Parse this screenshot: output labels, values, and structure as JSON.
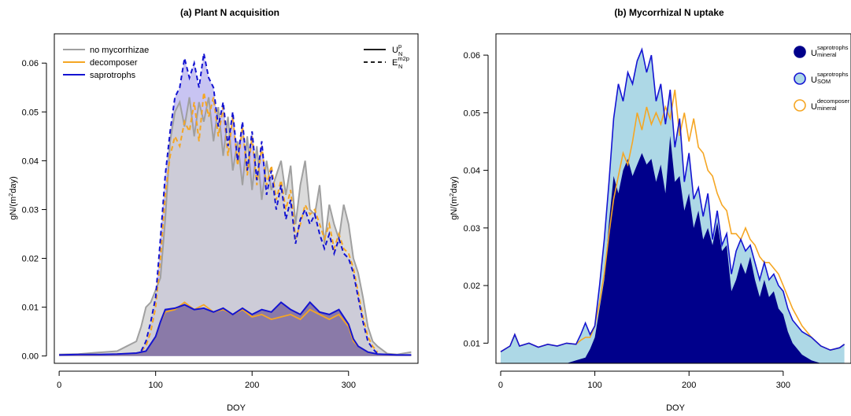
{
  "chart_data": [
    {
      "type": "area",
      "title": "(a) Plant N acquisition",
      "xlabel": "DOY",
      "ylabel": "gN/(m²day)",
      "xlim": [
        -5,
        372
      ],
      "ylim": [
        -0.0015,
        0.066
      ],
      "xticks": [
        0,
        100,
        200,
        300
      ],
      "yticks": [
        0.0,
        0.01,
        0.02,
        0.03,
        0.04,
        0.05,
        0.06
      ],
      "ytick_labels": [
        "0.00",
        "0.01",
        "0.02",
        "0.03",
        "0.04",
        "0.05",
        "0.06"
      ],
      "legend_position": "top-left",
      "legend": [
        {
          "label": "no mycorrhizae",
          "color": "#a0a0a0"
        },
        {
          "label": "decomposer",
          "color": "#f5a623"
        },
        {
          "label": "saprotrophs",
          "color": "#1414d2"
        }
      ],
      "legend2": [
        {
          "base": "U",
          "sup": "p",
          "sub": "N",
          "style": "solid"
        },
        {
          "base": "E",
          "sup": "m2p",
          "sub": "N",
          "style": "dashed"
        }
      ],
      "series": [
        {
          "name": "no mycorrhizae",
          "color": "#a0a0a0",
          "style": "solid",
          "fill": "#cfcfcf",
          "x": [
            0,
            20,
            40,
            60,
            70,
            80,
            85,
            90,
            95,
            100,
            105,
            110,
            115,
            120,
            125,
            130,
            135,
            140,
            145,
            150,
            155,
            160,
            165,
            170,
            175,
            180,
            185,
            190,
            195,
            200,
            205,
            210,
            215,
            220,
            225,
            230,
            235,
            240,
            245,
            250,
            255,
            260,
            265,
            270,
            275,
            280,
            285,
            290,
            295,
            300,
            305,
            310,
            315,
            320,
            325,
            330,
            340,
            350,
            365
          ],
          "y": [
            0.0003,
            0.0004,
            0.0007,
            0.001,
            0.002,
            0.003,
            0.006,
            0.01,
            0.011,
            0.0135,
            0.016,
            0.028,
            0.044,
            0.05,
            0.052,
            0.047,
            0.053,
            0.045,
            0.052,
            0.048,
            0.053,
            0.044,
            0.051,
            0.041,
            0.049,
            0.038,
            0.044,
            0.035,
            0.045,
            0.034,
            0.043,
            0.032,
            0.04,
            0.034,
            0.037,
            0.04,
            0.033,
            0.039,
            0.027,
            0.035,
            0.04,
            0.03,
            0.029,
            0.035,
            0.023,
            0.031,
            0.027,
            0.024,
            0.031,
            0.027,
            0.02,
            0.017,
            0.012,
            0.006,
            0.003,
            0.002,
            0.0005,
            0.0003,
            0.0008
          ]
        },
        {
          "name": "decomposer",
          "color": "#f5a623",
          "style": "solid",
          "x": [
            0,
            20,
            40,
            60,
            80,
            90,
            100,
            105,
            110,
            120,
            130,
            140,
            150,
            160,
            170,
            180,
            190,
            200,
            210,
            220,
            230,
            240,
            250,
            260,
            270,
            280,
            290,
            300,
            305,
            310,
            320,
            330,
            340,
            350,
            365
          ],
          "y": [
            0.0002,
            0.0003,
            0.0003,
            0.0004,
            0.0006,
            0.001,
            0.004,
            0.007,
            0.009,
            0.0095,
            0.011,
            0.0095,
            0.0105,
            0.009,
            0.0095,
            0.0085,
            0.0095,
            0.008,
            0.0085,
            0.0075,
            0.008,
            0.0085,
            0.0075,
            0.0095,
            0.0085,
            0.0075,
            0.0085,
            0.006,
            0.003,
            0.002,
            0.0008,
            0.0004,
            0.0003,
            0.0002,
            0.0002
          ]
        },
        {
          "name": "saprotrophs",
          "color": "#1414d2",
          "style": "solid",
          "fill": "#8a7aa8",
          "x": [
            0,
            20,
            40,
            60,
            80,
            90,
            100,
            105,
            110,
            120,
            130,
            140,
            150,
            160,
            170,
            180,
            190,
            200,
            210,
            220,
            230,
            240,
            250,
            260,
            270,
            280,
            290,
            300,
            305,
            310,
            320,
            330,
            340,
            350,
            365
          ],
          "y": [
            0.0002,
            0.0003,
            0.0003,
            0.0004,
            0.0006,
            0.001,
            0.004,
            0.007,
            0.0095,
            0.0098,
            0.0105,
            0.0095,
            0.0098,
            0.009,
            0.0098,
            0.0085,
            0.0098,
            0.0085,
            0.0095,
            0.009,
            0.011,
            0.0095,
            0.0085,
            0.011,
            0.009,
            0.0085,
            0.0095,
            0.0065,
            0.0035,
            0.002,
            0.0008,
            0.0004,
            0.0003,
            0.0002,
            0.0002
          ]
        },
        {
          "name": "decomposer",
          "color": "#f5a623",
          "style": "dashed",
          "x": [
            85,
            90,
            95,
            100,
            105,
            110,
            115,
            120,
            125,
            130,
            135,
            140,
            145,
            150,
            155,
            160,
            165,
            170,
            175,
            180,
            185,
            190,
            195,
            200,
            205,
            210,
            215,
            220,
            225,
            230,
            235,
            240,
            245,
            250,
            255,
            260,
            265,
            270,
            275,
            280,
            285,
            290,
            295,
            300,
            305,
            310,
            315,
            320,
            325,
            330
          ],
          "y": [
            0.001,
            0.002,
            0.005,
            0.01,
            0.02,
            0.033,
            0.041,
            0.045,
            0.043,
            0.048,
            0.046,
            0.052,
            0.044,
            0.054,
            0.049,
            0.053,
            0.045,
            0.051,
            0.041,
            0.049,
            0.039,
            0.047,
            0.037,
            0.045,
            0.035,
            0.043,
            0.035,
            0.039,
            0.032,
            0.036,
            0.03,
            0.034,
            0.024,
            0.027,
            0.031,
            0.029,
            0.03,
            0.027,
            0.024,
            0.027,
            0.022,
            0.025,
            0.022,
            0.021,
            0.018,
            0.013,
            0.008,
            0.004,
            0.002,
            0.0008
          ]
        },
        {
          "name": "saprotrophs",
          "color": "#1414d2",
          "style": "dashed",
          "fill": "#c8c4f2",
          "x": [
            85,
            90,
            95,
            100,
            105,
            110,
            115,
            120,
            125,
            130,
            135,
            140,
            145,
            150,
            155,
            160,
            165,
            170,
            175,
            180,
            185,
            190,
            195,
            200,
            205,
            210,
            215,
            220,
            225,
            230,
            235,
            240,
            245,
            250,
            255,
            260,
            265,
            270,
            275,
            280,
            285,
            290,
            295,
            300,
            305,
            310,
            315,
            320,
            325,
            330
          ],
          "y": [
            0.001,
            0.003,
            0.007,
            0.012,
            0.024,
            0.037,
            0.046,
            0.053,
            0.055,
            0.061,
            0.057,
            0.06,
            0.055,
            0.062,
            0.057,
            0.055,
            0.047,
            0.052,
            0.043,
            0.05,
            0.04,
            0.048,
            0.038,
            0.046,
            0.036,
            0.044,
            0.033,
            0.038,
            0.03,
            0.035,
            0.028,
            0.032,
            0.023,
            0.028,
            0.03,
            0.027,
            0.029,
            0.025,
            0.022,
            0.025,
            0.021,
            0.024,
            0.021,
            0.02,
            0.017,
            0.012,
            0.007,
            0.003,
            0.0015,
            0.0005
          ]
        }
      ]
    },
    {
      "type": "area",
      "title": "(b) Mycorrhizal N uptake",
      "xlabel": "DOY",
      "ylabel": "gN/(m²day)",
      "xlim": [
        -5,
        372
      ],
      "ylim": [
        0.0065,
        0.0637
      ],
      "xticks": [
        0,
        100,
        200,
        300
      ],
      "yticks": [
        0.01,
        0.02,
        0.03,
        0.04,
        0.05,
        0.06
      ],
      "ytick_labels": [
        "0.01",
        "0.02",
        "0.03",
        "0.04",
        "0.05",
        "0.06"
      ],
      "legend_position": "top-right",
      "legend": [
        {
          "base": "U",
          "sup": "saprotrophs",
          "sub": "mineral",
          "marker": "filled",
          "color": "#00008b"
        },
        {
          "base": "U",
          "sup": "saprotrophs",
          "sub": "SOM",
          "marker": "filled",
          "color": "#add8e6",
          "edge": "#1414d2"
        },
        {
          "base": "U",
          "sup": "decomposer",
          "sub": "mineral",
          "marker": "open",
          "color": "#f5a623"
        }
      ],
      "series": [
        {
          "name": "saprotrophs SOM",
          "color": "#1414d2",
          "fill": "#add8e6",
          "style": "solid",
          "x": [
            0,
            10,
            15,
            20,
            30,
            40,
            50,
            60,
            70,
            80,
            85,
            90,
            95,
            100,
            105,
            110,
            115,
            120,
            125,
            130,
            135,
            140,
            145,
            150,
            155,
            160,
            165,
            170,
            175,
            180,
            185,
            190,
            195,
            200,
            205,
            210,
            215,
            220,
            225,
            230,
            235,
            240,
            245,
            250,
            255,
            260,
            265,
            270,
            275,
            280,
            285,
            290,
            295,
            300,
            305,
            310,
            320,
            330,
            340,
            350,
            360,
            365
          ],
          "y": [
            0.0085,
            0.0095,
            0.0115,
            0.0095,
            0.01,
            0.0093,
            0.0098,
            0.0095,
            0.01,
            0.0098,
            0.0115,
            0.0135,
            0.0115,
            0.013,
            0.02,
            0.028,
            0.038,
            0.049,
            0.055,
            0.052,
            0.057,
            0.055,
            0.059,
            0.061,
            0.057,
            0.06,
            0.052,
            0.055,
            0.048,
            0.054,
            0.044,
            0.049,
            0.038,
            0.043,
            0.035,
            0.037,
            0.032,
            0.036,
            0.028,
            0.033,
            0.027,
            0.029,
            0.022,
            0.026,
            0.028,
            0.026,
            0.027,
            0.024,
            0.021,
            0.024,
            0.021,
            0.022,
            0.02,
            0.019,
            0.016,
            0.014,
            0.012,
            0.011,
            0.0095,
            0.0088,
            0.0092,
            0.0098
          ]
        },
        {
          "name": "saprotrophs mineral",
          "color": "#00008b",
          "fill": "#00008b",
          "style": "solid",
          "x": [
            60,
            70,
            80,
            90,
            95,
            100,
            105,
            110,
            115,
            120,
            125,
            130,
            135,
            140,
            145,
            150,
            155,
            160,
            165,
            170,
            175,
            180,
            185,
            190,
            195,
            200,
            205,
            210,
            215,
            220,
            225,
            230,
            235,
            240,
            245,
            250,
            255,
            260,
            265,
            270,
            275,
            280,
            285,
            290,
            295,
            300,
            305,
            310,
            320,
            330,
            340,
            350
          ],
          "y": [
            0.006,
            0.0065,
            0.007,
            0.0075,
            0.009,
            0.011,
            0.016,
            0.021,
            0.031,
            0.039,
            0.036,
            0.04,
            0.042,
            0.039,
            0.041,
            0.043,
            0.041,
            0.042,
            0.038,
            0.041,
            0.036,
            0.046,
            0.038,
            0.039,
            0.033,
            0.036,
            0.03,
            0.033,
            0.028,
            0.03,
            0.027,
            0.031,
            0.026,
            0.027,
            0.019,
            0.021,
            0.024,
            0.022,
            0.025,
            0.021,
            0.018,
            0.021,
            0.018,
            0.019,
            0.016,
            0.015,
            0.012,
            0.01,
            0.008,
            0.007,
            0.0065,
            0.006
          ]
        },
        {
          "name": "decomposer mineral",
          "color": "#f5a623",
          "style": "solid",
          "x": [
            0,
            10,
            15,
            20,
            30,
            40,
            50,
            60,
            70,
            80,
            85,
            90,
            95,
            100,
            105,
            110,
            115,
            120,
            125,
            130,
            135,
            140,
            145,
            150,
            155,
            160,
            165,
            170,
            175,
            180,
            185,
            190,
            195,
            200,
            205,
            210,
            215,
            220,
            225,
            230,
            235,
            240,
            245,
            250,
            255,
            260,
            265,
            270,
            275,
            280,
            285,
            290,
            295,
            300,
            305,
            310,
            320,
            330,
            340,
            350,
            360,
            365
          ],
          "y": [
            0.0085,
            0.0095,
            0.0115,
            0.0095,
            0.01,
            0.0093,
            0.0098,
            0.0095,
            0.01,
            0.0098,
            0.0105,
            0.011,
            0.011,
            0.013,
            0.017,
            0.022,
            0.029,
            0.035,
            0.039,
            0.043,
            0.041,
            0.045,
            0.05,
            0.047,
            0.051,
            0.048,
            0.05,
            0.048,
            0.051,
            0.049,
            0.054,
            0.046,
            0.05,
            0.045,
            0.049,
            0.044,
            0.043,
            0.04,
            0.039,
            0.036,
            0.034,
            0.033,
            0.029,
            0.029,
            0.028,
            0.03,
            0.028,
            0.027,
            0.025,
            0.024,
            0.024,
            0.023,
            0.022,
            0.02,
            0.018,
            0.016,
            0.013,
            0.011,
            0.0095,
            0.0088,
            0.0092,
            0.0098
          ]
        }
      ]
    }
  ]
}
